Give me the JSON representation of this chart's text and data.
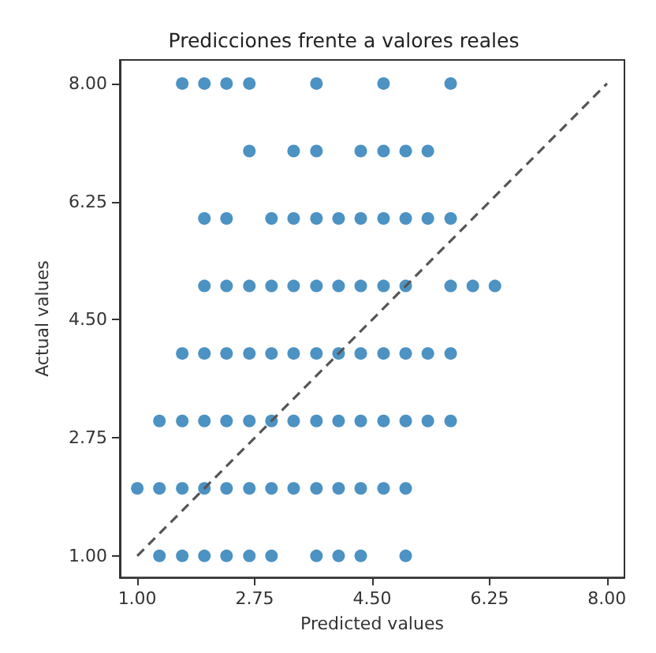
{
  "chart_data": {
    "type": "scatter",
    "title": "Predicciones frente a valores reales",
    "xlabel": "Predicted values",
    "ylabel": "Actual values",
    "xlim": [
      0.74,
      8.26
    ],
    "ylim": [
      0.68,
      8.35
    ],
    "xticks": [
      {
        "value": 1,
        "label": "1.00"
      },
      {
        "value": 2.75,
        "label": "2.75"
      },
      {
        "value": 4.5,
        "label": "4.50"
      },
      {
        "value": 6.25,
        "label": "6.25"
      },
      {
        "value": 8,
        "label": "8.00"
      }
    ],
    "yticks": [
      {
        "value": 1,
        "label": "1.00"
      },
      {
        "value": 2.75,
        "label": "2.75"
      },
      {
        "value": 4.5,
        "label": "4.50"
      },
      {
        "value": 6.25,
        "label": "6.25"
      },
      {
        "value": 8,
        "label": "8.00"
      }
    ],
    "grid": false,
    "marker": "circle",
    "series": [
      {
        "color": "#1f77b4",
        "x": [
          1.33,
          1.67,
          2,
          2.33,
          2.67,
          3,
          3.67,
          4,
          4.33,
          5,
          1,
          1.33,
          1.67,
          2,
          2.33,
          2.67,
          3,
          3.33,
          3.67,
          4,
          4.33,
          4.67,
          5,
          1.33,
          1.67,
          2,
          2.33,
          2.67,
          3,
          3.33,
          3.67,
          4,
          4.33,
          4.67,
          5,
          5.33,
          5.67,
          1.67,
          2,
          2.33,
          2.67,
          3,
          3.33,
          3.67,
          4,
          4.33,
          4.67,
          5,
          5.33,
          5.67,
          2,
          2.33,
          2.67,
          3,
          3.33,
          3.67,
          4,
          4.33,
          4.67,
          5,
          5.67,
          6,
          6.33,
          2,
          2.33,
          3,
          3.33,
          3.67,
          4,
          4.33,
          4.67,
          5,
          5.33,
          5.67,
          2.67,
          3.33,
          3.67,
          4.33,
          4.67,
          5,
          5.33,
          1.67,
          2,
          2.33,
          2.67,
          3.67,
          4.67,
          5.67
        ],
        "values": [
          1,
          1,
          1,
          1,
          1,
          1,
          1,
          1,
          1,
          1,
          2,
          2,
          2,
          2,
          2,
          2,
          2,
          2,
          2,
          2,
          2,
          2,
          2,
          3,
          3,
          3,
          3,
          3,
          3,
          3,
          3,
          3,
          3,
          3,
          3,
          3,
          3,
          4,
          4,
          4,
          4,
          4,
          4,
          4,
          4,
          4,
          4,
          4,
          4,
          4,
          5,
          5,
          5,
          5,
          5,
          5,
          5,
          5,
          5,
          5,
          5,
          5,
          5,
          6,
          6,
          6,
          6,
          6,
          6,
          6,
          6,
          6,
          6,
          6,
          7,
          7,
          7,
          7,
          7,
          7,
          7,
          8,
          8,
          8,
          8,
          8,
          8,
          8
        ]
      },
      {
        "type": "line",
        "color": "#555555",
        "line_style": "dashed",
        "marker": "none",
        "x": [
          1,
          8
        ],
        "values": [
          1,
          8
        ]
      }
    ]
  }
}
